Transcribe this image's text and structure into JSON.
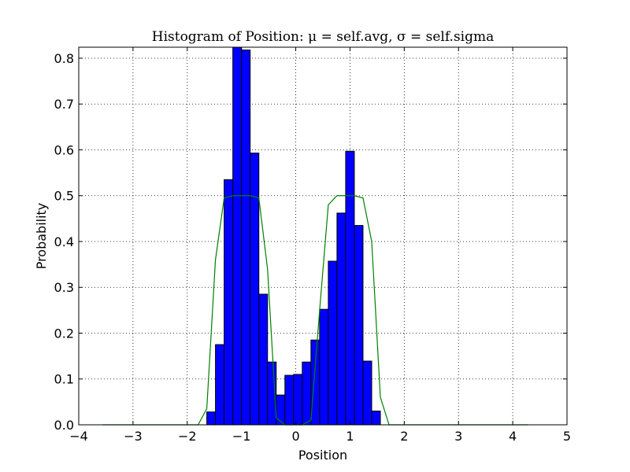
{
  "chart_data": {
    "type": "bar",
    "title": "Histogram of Position: μ = self.avg, σ = self.sigma",
    "xlabel": "Position",
    "ylabel": "Probability",
    "xlim": [
      -4,
      5
    ],
    "ylim": [
      0,
      0.824
    ],
    "xticks": [
      -4,
      -3,
      -2,
      -1,
      0,
      1,
      2,
      3,
      4,
      5
    ],
    "xtick_labels": [
      "−4",
      "−3",
      "−2",
      "−1",
      "0",
      "1",
      "2",
      "3",
      "4",
      "5"
    ],
    "yticks": [
      0.0,
      0.1,
      0.2,
      0.3,
      0.4,
      0.5,
      0.6,
      0.7,
      0.8
    ],
    "ytick_labels": [
      "0.0",
      "0.1",
      "0.2",
      "0.3",
      "0.4",
      "0.5",
      "0.6",
      "0.7",
      "0.8"
    ],
    "grid": true,
    "bar_color": "#0000ff",
    "line_color": "#008000",
    "bin_width": 0.16,
    "bins": [
      {
        "x0": -1.64,
        "value": 0.028
      },
      {
        "x0": -1.48,
        "value": 0.175
      },
      {
        "x0": -1.32,
        "value": 0.535
      },
      {
        "x0": -1.16,
        "value": 0.824
      },
      {
        "x0": -1.0,
        "value": 0.818
      },
      {
        "x0": -0.84,
        "value": 0.593
      },
      {
        "x0": -0.68,
        "value": 0.285
      },
      {
        "x0": -0.52,
        "value": 0.137
      },
      {
        "x0": -0.36,
        "value": 0.065
      },
      {
        "x0": -0.2,
        "value": 0.108
      },
      {
        "x0": -0.04,
        "value": 0.11
      },
      {
        "x0": 0.12,
        "value": 0.137
      },
      {
        "x0": 0.28,
        "value": 0.185
      },
      {
        "x0": 0.44,
        "value": 0.252
      },
      {
        "x0": 0.6,
        "value": 0.357
      },
      {
        "x0": 0.76,
        "value": 0.462
      },
      {
        "x0": 0.92,
        "value": 0.597
      },
      {
        "x0": 1.08,
        "value": 0.435
      },
      {
        "x0": 1.24,
        "value": 0.139
      },
      {
        "x0": 1.4,
        "value": 0.03
      }
    ],
    "line": {
      "x": [
        -3.56,
        -1.8,
        -1.64,
        -1.48,
        -1.32,
        -1.16,
        -1.0,
        -0.84,
        -0.68,
        -0.52,
        -0.36,
        -0.2,
        -0.04,
        0.12,
        0.28,
        0.44,
        0.6,
        0.76,
        0.92,
        1.08,
        1.24,
        1.4,
        1.56,
        1.72,
        4.28
      ],
      "y": [
        0.0,
        0.0,
        0.035,
        0.36,
        0.495,
        0.5,
        0.5,
        0.5,
        0.495,
        0.34,
        0.015,
        0.0,
        0.0,
        0.0,
        0.01,
        0.25,
        0.48,
        0.5,
        0.5,
        0.5,
        0.495,
        0.4,
        0.06,
        0.0,
        0.0
      ]
    }
  }
}
